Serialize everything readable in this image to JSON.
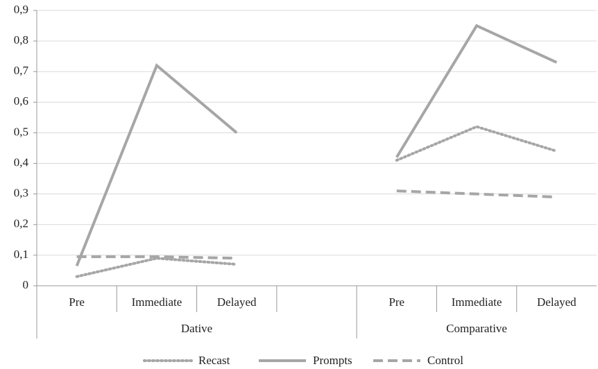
{
  "chart_data": {
    "type": "line",
    "groups": [
      {
        "name": "Dative",
        "categories": [
          "Pre",
          "Immediate",
          "Delayed",
          null
        ]
      },
      {
        "name": "Comparative",
        "categories": [
          "Pre",
          "Immediate",
          "Delayed"
        ]
      }
    ],
    "series": [
      {
        "name": "Recast",
        "color": "#a6a6a6",
        "style": "dotted",
        "values": [
          0.03,
          0.09,
          0.07,
          null,
          0.41,
          0.52,
          0.44
        ]
      },
      {
        "name": "Prompts",
        "color": "#a6a6a6",
        "style": "solid",
        "values": [
          0.065,
          0.72,
          0.5,
          null,
          0.42,
          0.85,
          0.73
        ]
      },
      {
        "name": "Control",
        "color": "#a6a6a6",
        "style": "dashed",
        "values": [
          0.095,
          0.095,
          0.09,
          null,
          0.31,
          0.3,
          0.29
        ]
      }
    ],
    "ylim": [
      0,
      0.9
    ],
    "yticks": [
      0,
      {
        "value": 0.1,
        "label": "0,1"
      },
      {
        "value": 0.2,
        "label": "0,2"
      },
      {
        "value": 0.3,
        "label": "0,3"
      },
      {
        "value": 0.4,
        "label": "0,4"
      },
      {
        "value": 0.5,
        "label": "0,5"
      },
      {
        "value": 0.6,
        "label": "0,6"
      },
      {
        "value": 0.7,
        "label": "0,7"
      },
      {
        "value": 0.8,
        "label": "0,8"
      },
      {
        "value": 0.9,
        "label": "0,9"
      }
    ],
    "grid": true,
    "legend": "bottom"
  }
}
